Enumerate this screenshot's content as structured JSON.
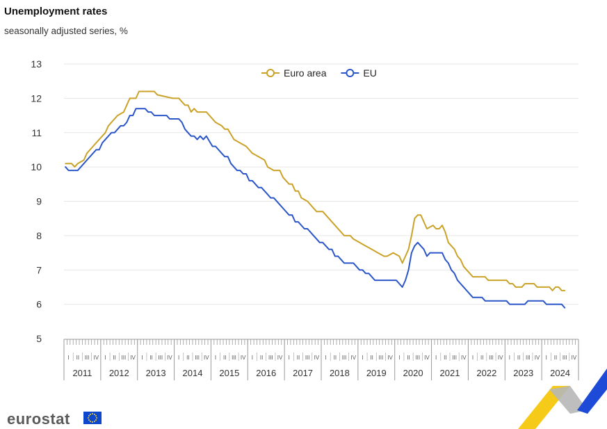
{
  "header": {
    "title": "Unemployment rates",
    "subtitle": "seasonally adjusted series, %"
  },
  "footer": {
    "logo_text": "eurostat"
  },
  "colors": {
    "euro_area": "#c9a227",
    "eu": "#2a55c9",
    "grid": "#e6e6e6",
    "axis_text": "#333333"
  },
  "chart_data": {
    "type": "line",
    "x_unit": "quarter",
    "quarter_labels": [
      "I",
      "II",
      "III",
      "IV"
    ],
    "years": [
      "2011",
      "2012",
      "2013",
      "2014",
      "2015",
      "2016",
      "2017",
      "2018",
      "2019",
      "2020",
      "2021",
      "2022",
      "2023",
      "2024"
    ],
    "ylim": [
      5,
      13
    ],
    "yticks": [
      5,
      6,
      7,
      8,
      9,
      10,
      11,
      12,
      13
    ],
    "grid": true,
    "legend": "top-center",
    "series": [
      {
        "name": "Euro area",
        "color": "#c9a227",
        "points": [
          [
            "2011-01",
            10.1
          ],
          [
            "2011-03",
            10.1
          ],
          [
            "2011-04",
            10.0
          ],
          [
            "2011-05",
            10.1
          ],
          [
            "2011-07",
            10.2
          ],
          [
            "2011-08",
            10.4
          ],
          [
            "2011-10",
            10.6
          ],
          [
            "2011-12",
            10.8
          ],
          [
            "2012-02",
            11.0
          ],
          [
            "2012-03",
            11.2
          ],
          [
            "2012-05",
            11.4
          ],
          [
            "2012-06",
            11.5
          ],
          [
            "2012-08",
            11.6
          ],
          [
            "2012-09",
            11.8
          ],
          [
            "2012-10",
            12.0
          ],
          [
            "2012-12",
            12.0
          ],
          [
            "2013-01",
            12.2
          ],
          [
            "2013-06",
            12.2
          ],
          [
            "2013-07",
            12.1
          ],
          [
            "2013-12",
            12.0
          ],
          [
            "2014-02",
            12.0
          ],
          [
            "2014-03",
            11.9
          ],
          [
            "2014-04",
            11.8
          ],
          [
            "2014-05",
            11.8
          ],
          [
            "2014-06",
            11.6
          ],
          [
            "2014-07",
            11.7
          ],
          [
            "2014-08",
            11.6
          ],
          [
            "2014-11",
            11.6
          ],
          [
            "2015-01",
            11.4
          ],
          [
            "2015-02",
            11.3
          ],
          [
            "2015-04",
            11.2
          ],
          [
            "2015-05",
            11.1
          ],
          [
            "2015-06",
            11.1
          ],
          [
            "2015-08",
            10.8
          ],
          [
            "2015-10",
            10.7
          ],
          [
            "2015-12",
            10.6
          ],
          [
            "2016-02",
            10.4
          ],
          [
            "2016-04",
            10.3
          ],
          [
            "2016-06",
            10.2
          ],
          [
            "2016-07",
            10.0
          ],
          [
            "2016-09",
            9.9
          ],
          [
            "2016-11",
            9.9
          ],
          [
            "2016-12",
            9.7
          ],
          [
            "2017-02",
            9.5
          ],
          [
            "2017-03",
            9.5
          ],
          [
            "2017-04",
            9.3
          ],
          [
            "2017-05",
            9.3
          ],
          [
            "2017-06",
            9.1
          ],
          [
            "2017-08",
            9.0
          ],
          [
            "2017-10",
            8.8
          ],
          [
            "2017-11",
            8.7
          ],
          [
            "2018-01",
            8.7
          ],
          [
            "2018-03",
            8.5
          ],
          [
            "2018-05",
            8.3
          ],
          [
            "2018-07",
            8.1
          ],
          [
            "2018-08",
            8.0
          ],
          [
            "2018-10",
            8.0
          ],
          [
            "2018-11",
            7.9
          ],
          [
            "2019-01",
            7.8
          ],
          [
            "2019-03",
            7.7
          ],
          [
            "2019-05",
            7.6
          ],
          [
            "2019-07",
            7.5
          ],
          [
            "2019-09",
            7.4
          ],
          [
            "2019-10",
            7.4
          ],
          [
            "2019-12",
            7.5
          ],
          [
            "2020-02",
            7.4
          ],
          [
            "2020-03",
            7.2
          ],
          [
            "2020-04",
            7.4
          ],
          [
            "2020-05",
            7.6
          ],
          [
            "2020-06",
            8.0
          ],
          [
            "2020-07",
            8.5
          ],
          [
            "2020-08",
            8.6
          ],
          [
            "2020-09",
            8.6
          ],
          [
            "2020-10",
            8.4
          ],
          [
            "2020-11",
            8.2
          ],
          [
            "2021-01",
            8.3
          ],
          [
            "2021-02",
            8.2
          ],
          [
            "2021-03",
            8.2
          ],
          [
            "2021-04",
            8.3
          ],
          [
            "2021-05",
            8.1
          ],
          [
            "2021-06",
            7.8
          ],
          [
            "2021-08",
            7.6
          ],
          [
            "2021-09",
            7.4
          ],
          [
            "2021-10",
            7.3
          ],
          [
            "2021-11",
            7.1
          ],
          [
            "2022-01",
            6.9
          ],
          [
            "2022-02",
            6.8
          ],
          [
            "2022-06",
            6.8
          ],
          [
            "2022-07",
            6.7
          ],
          [
            "2022-12",
            6.7
          ],
          [
            "2023-01",
            6.7
          ],
          [
            "2023-02",
            6.6
          ],
          [
            "2023-03",
            6.6
          ],
          [
            "2023-04",
            6.5
          ],
          [
            "2023-06",
            6.5
          ],
          [
            "2023-07",
            6.6
          ],
          [
            "2023-10",
            6.6
          ],
          [
            "2023-11",
            6.5
          ],
          [
            "2024-03",
            6.5
          ],
          [
            "2024-04",
            6.4
          ],
          [
            "2024-05",
            6.5
          ],
          [
            "2024-06",
            6.5
          ],
          [
            "2024-07",
            6.4
          ],
          [
            "2024-08",
            6.4
          ]
        ]
      },
      {
        "name": "EU",
        "color": "#2a55c9",
        "points": [
          [
            "2011-01",
            10.0
          ],
          [
            "2011-02",
            9.9
          ],
          [
            "2011-05",
            9.9
          ],
          [
            "2011-07",
            10.1
          ],
          [
            "2011-09",
            10.3
          ],
          [
            "2011-11",
            10.5
          ],
          [
            "2011-12",
            10.5
          ],
          [
            "2012-01",
            10.7
          ],
          [
            "2012-03",
            10.9
          ],
          [
            "2012-04",
            11.0
          ],
          [
            "2012-05",
            11.0
          ],
          [
            "2012-07",
            11.2
          ],
          [
            "2012-08",
            11.2
          ],
          [
            "2012-09",
            11.3
          ],
          [
            "2012-10",
            11.5
          ],
          [
            "2012-11",
            11.5
          ],
          [
            "2012-12",
            11.7
          ],
          [
            "2013-03",
            11.7
          ],
          [
            "2013-04",
            11.6
          ],
          [
            "2013-05",
            11.6
          ],
          [
            "2013-06",
            11.5
          ],
          [
            "2013-10",
            11.5
          ],
          [
            "2013-11",
            11.4
          ],
          [
            "2014-02",
            11.4
          ],
          [
            "2014-03",
            11.3
          ],
          [
            "2014-04",
            11.1
          ],
          [
            "2014-05",
            11.0
          ],
          [
            "2014-06",
            10.9
          ],
          [
            "2014-07",
            10.9
          ],
          [
            "2014-08",
            10.8
          ],
          [
            "2014-09",
            10.9
          ],
          [
            "2014-10",
            10.8
          ],
          [
            "2014-11",
            10.9
          ],
          [
            "2015-01",
            10.6
          ],
          [
            "2015-02",
            10.6
          ],
          [
            "2015-04",
            10.4
          ],
          [
            "2015-05",
            10.3
          ],
          [
            "2015-06",
            10.3
          ],
          [
            "2015-07",
            10.1
          ],
          [
            "2015-09",
            9.9
          ],
          [
            "2015-10",
            9.9
          ],
          [
            "2015-11",
            9.8
          ],
          [
            "2015-12",
            9.8
          ],
          [
            "2016-01",
            9.6
          ],
          [
            "2016-02",
            9.6
          ],
          [
            "2016-03",
            9.5
          ],
          [
            "2016-04",
            9.4
          ],
          [
            "2016-05",
            9.4
          ],
          [
            "2016-07",
            9.2
          ],
          [
            "2016-08",
            9.1
          ],
          [
            "2016-09",
            9.1
          ],
          [
            "2016-11",
            8.9
          ],
          [
            "2016-12",
            8.8
          ],
          [
            "2017-02",
            8.6
          ],
          [
            "2017-03",
            8.6
          ],
          [
            "2017-04",
            8.4
          ],
          [
            "2017-05",
            8.4
          ],
          [
            "2017-06",
            8.3
          ],
          [
            "2017-07",
            8.2
          ],
          [
            "2017-08",
            8.2
          ],
          [
            "2017-10",
            8.0
          ],
          [
            "2017-11",
            7.9
          ],
          [
            "2017-12",
            7.8
          ],
          [
            "2018-01",
            7.8
          ],
          [
            "2018-02",
            7.7
          ],
          [
            "2018-03",
            7.6
          ],
          [
            "2018-04",
            7.6
          ],
          [
            "2018-05",
            7.4
          ],
          [
            "2018-06",
            7.4
          ],
          [
            "2018-07",
            7.3
          ],
          [
            "2018-08",
            7.2
          ],
          [
            "2018-11",
            7.2
          ],
          [
            "2018-12",
            7.1
          ],
          [
            "2019-01",
            7.0
          ],
          [
            "2019-02",
            7.0
          ],
          [
            "2019-03",
            6.9
          ],
          [
            "2019-04",
            6.9
          ],
          [
            "2019-05",
            6.8
          ],
          [
            "2019-06",
            6.7
          ],
          [
            "2019-12",
            6.7
          ],
          [
            "2020-01",
            6.7
          ],
          [
            "2020-02",
            6.6
          ],
          [
            "2020-03",
            6.5
          ],
          [
            "2020-04",
            6.7
          ],
          [
            "2020-05",
            7.0
          ],
          [
            "2020-06",
            7.5
          ],
          [
            "2020-07",
            7.7
          ],
          [
            "2020-08",
            7.8
          ],
          [
            "2020-09",
            7.7
          ],
          [
            "2020-10",
            7.6
          ],
          [
            "2020-11",
            7.4
          ],
          [
            "2020-12",
            7.5
          ],
          [
            "2021-04",
            7.5
          ],
          [
            "2021-05",
            7.3
          ],
          [
            "2021-06",
            7.2
          ],
          [
            "2021-07",
            7.0
          ],
          [
            "2021-08",
            6.9
          ],
          [
            "2021-09",
            6.7
          ],
          [
            "2021-10",
            6.6
          ],
          [
            "2021-11",
            6.5
          ],
          [
            "2021-12",
            6.4
          ],
          [
            "2022-01",
            6.3
          ],
          [
            "2022-02",
            6.2
          ],
          [
            "2022-05",
            6.2
          ],
          [
            "2022-06",
            6.1
          ],
          [
            "2022-12",
            6.1
          ],
          [
            "2023-01",
            6.1
          ],
          [
            "2023-02",
            6.0
          ],
          [
            "2023-07",
            6.0
          ],
          [
            "2023-08",
            6.1
          ],
          [
            "2024-01",
            6.1
          ],
          [
            "2024-02",
            6.0
          ],
          [
            "2024-07",
            6.0
          ],
          [
            "2024-08",
            5.9
          ]
        ]
      }
    ]
  }
}
